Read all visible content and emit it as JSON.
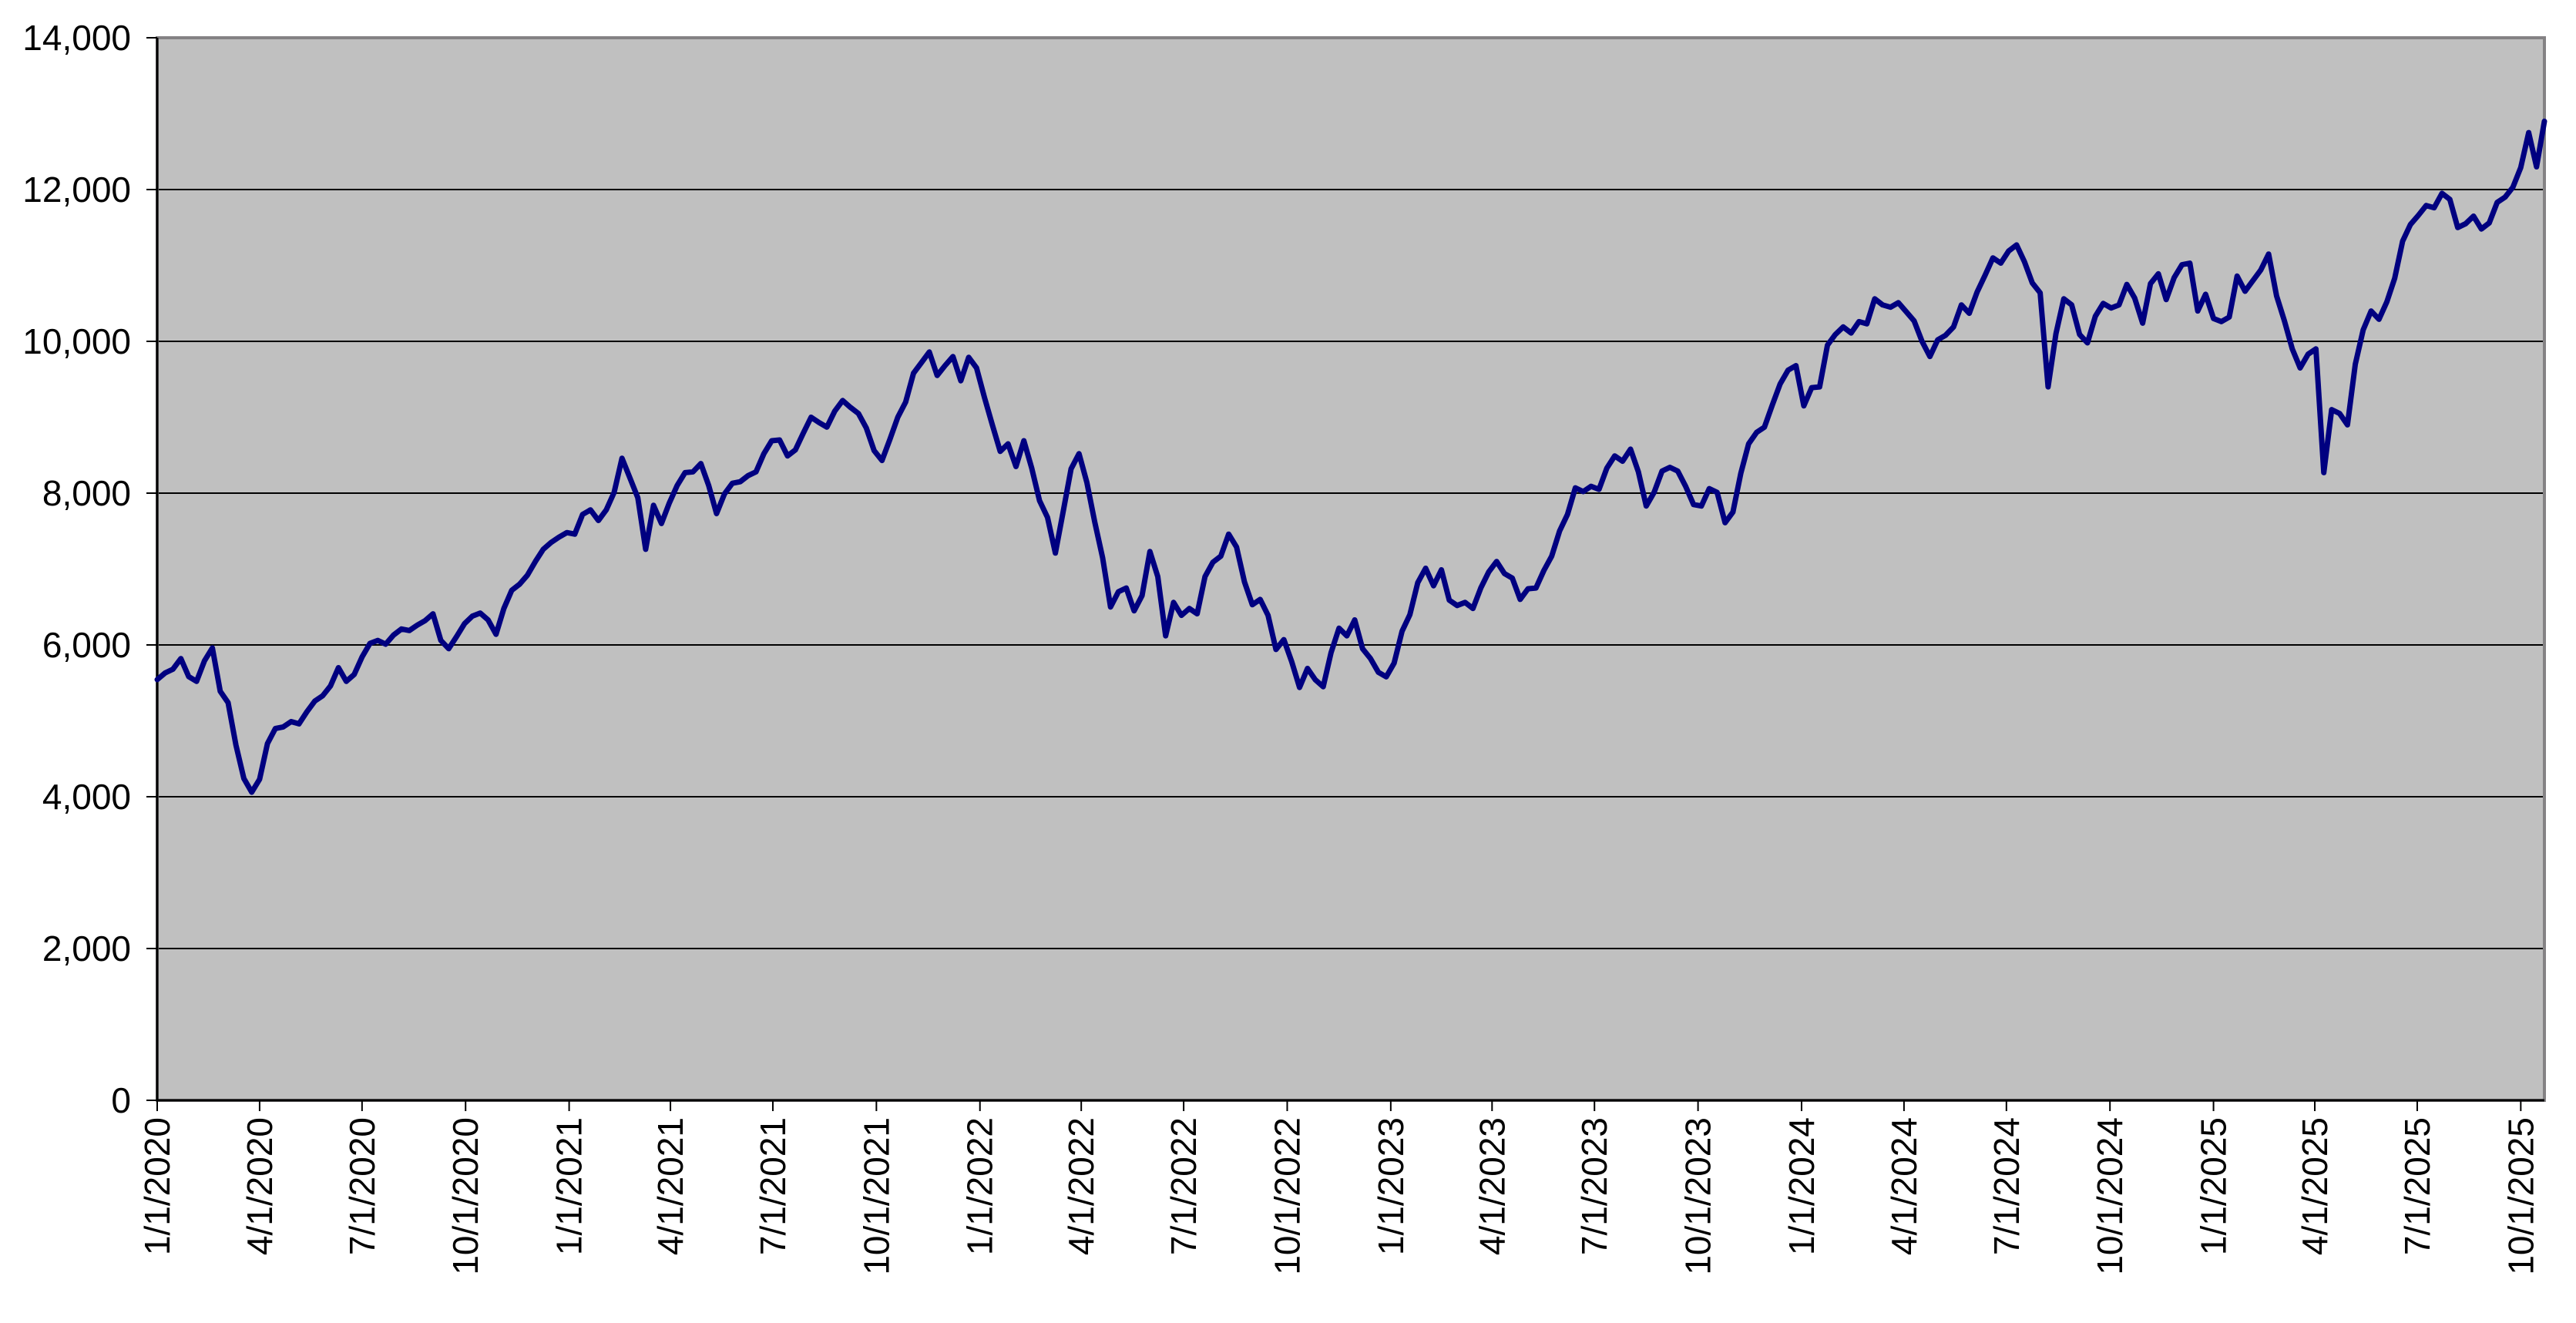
{
  "chart_data": {
    "type": "line",
    "title": "",
    "xlabel": "",
    "ylabel": "",
    "legend": "none",
    "grid": "horizontal",
    "ylim": [
      0,
      14000
    ],
    "y_tick_step": 2000,
    "y_tick_labels": [
      "0",
      "2,000",
      "4,000",
      "6,000",
      "8,000",
      "10,000",
      "12,000",
      "14,000"
    ],
    "x_tick_labels": [
      "1/1/2020",
      "4/1/2020",
      "7/1/2020",
      "10/1/2020",
      "1/1/2021",
      "4/1/2021",
      "7/1/2021",
      "10/1/2021",
      "1/1/2022",
      "4/1/2022",
      "7/1/2022",
      "10/1/2022",
      "1/1/2023",
      "4/1/2023",
      "7/1/2023",
      "10/1/2023",
      "1/1/2024",
      "4/1/2024",
      "7/1/2024",
      "10/1/2024",
      "1/1/2025",
      "4/1/2025",
      "7/1/2025",
      "10/1/2025"
    ],
    "x_start_date": "1/1/2020",
    "point_interval_days": 7,
    "colors": {
      "line": "#000080",
      "plot_background": "#C0C0C0",
      "gridline": "#000000",
      "plot_border": "#848284",
      "axis": "#000000",
      "label_text": "#000000",
      "page_background": "#FFFFFF"
    },
    "values": [
      5543,
      5630,
      5680,
      5820,
      5583,
      5520,
      5790,
      5960,
      5390,
      5240,
      4680,
      4240,
      4060,
      4230,
      4700,
      4900,
      4920,
      4990,
      4960,
      5120,
      5260,
      5330,
      5460,
      5700,
      5520,
      5610,
      5840,
      6020,
      6060,
      6010,
      6130,
      6210,
      6190,
      6260,
      6320,
      6410,
      6060,
      5950,
      6110,
      6280,
      6380,
      6420,
      6330,
      6140,
      6480,
      6720,
      6800,
      6920,
      7100,
      7260,
      7350,
      7420,
      7480,
      7460,
      7720,
      7780,
      7640,
      7780,
      8010,
      8460,
      8200,
      7940,
      7260,
      7840,
      7600,
      7870,
      8100,
      8270,
      8280,
      8390,
      8100,
      7730,
      7990,
      8130,
      8150,
      8230,
      8280,
      8520,
      8690,
      8700,
      8490,
      8570,
      8790,
      9000,
      8930,
      8870,
      9080,
      9220,
      9130,
      9050,
      8860,
      8560,
      8430,
      8710,
      9000,
      9200,
      9580,
      9720,
      9860,
      9550,
      9680,
      9800,
      9480,
      9790,
      9650,
      9260,
      8900,
      8550,
      8650,
      8350,
      8690,
      8330,
      7900,
      7680,
      7210,
      7760,
      8320,
      8520,
      8140,
      7620,
      7150,
      6500,
      6700,
      6750,
      6450,
      6650,
      7230,
      6900,
      6120,
      6560,
      6390,
      6480,
      6410,
      6900,
      7090,
      7170,
      7460,
      7290,
      6830,
      6530,
      6600,
      6390,
      5940,
      6070,
      5780,
      5440,
      5690,
      5540,
      5450,
      5900,
      6220,
      6120,
      6330,
      5950,
      5820,
      5640,
      5580,
      5760,
      6180,
      6400,
      6820,
      7010,
      6780,
      6990,
      6590,
      6520,
      6560,
      6480,
      6750,
      6960,
      7100,
      6940,
      6880,
      6600,
      6740,
      6750,
      6980,
      7170,
      7500,
      7720,
      8070,
      8020,
      8090,
      8050,
      8330,
      8490,
      8420,
      8580,
      8280,
      7830,
      8010,
      8290,
      8340,
      8290,
      8090,
      7850,
      7830,
      8060,
      8010,
      7610,
      7750,
      8260,
      8650,
      8800,
      8870,
      9160,
      9440,
      9620,
      9680,
      9150,
      9390,
      9400,
      9950,
      10090,
      10190,
      10110,
      10260,
      10230,
      10560,
      10480,
      10450,
      10510,
      10390,
      10270,
      10000,
      9800,
      10020,
      10080,
      10190,
      10480,
      10370,
      10650,
      10870,
      11100,
      11030,
      11190,
      11270,
      11050,
      10770,
      10640,
      9400,
      10100,
      10560,
      10480,
      10090,
      9980,
      10330,
      10500,
      10440,
      10480,
      10750,
      10570,
      10240,
      10760,
      10890,
      10550,
      10840,
      11010,
      11030,
      10400,
      10620,
      10300,
      10260,
      10320,
      10860,
      10660,
      10800,
      10940,
      11150,
      10600,
      10270,
      9900,
      9650,
      9830,
      9900,
      8270,
      9100,
      9050,
      8900,
      9700,
      10150,
      10400,
      10290,
      10520,
      10830,
      11320,
      11540,
      11660,
      11790,
      11760,
      11950,
      11870,
      11500,
      11550,
      11650,
      11480,
      11560,
      11830,
      11900,
      12030,
      12290,
      12750,
      12300,
      12900
    ]
  }
}
